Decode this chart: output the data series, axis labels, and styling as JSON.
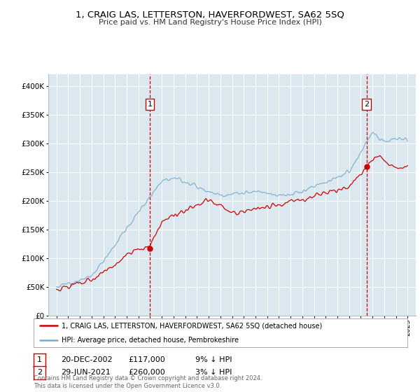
{
  "title": "1, CRAIG LAS, LETTERSTON, HAVERFORDWEST, SA62 5SQ",
  "subtitle": "Price paid vs. HM Land Registry's House Price Index (HPI)",
  "legend_line1": "1, CRAIG LAS, LETTERSTON, HAVERFORDWEST, SA62 5SQ (detached house)",
  "legend_line2": "HPI: Average price, detached house, Pembrokeshire",
  "sale1_date": "20-DEC-2002",
  "sale1_price": "£117,000",
  "sale1_hpi": "9% ↓ HPI",
  "sale1_year": 2002.97,
  "sale1_value": 117000,
  "sale2_date": "29-JUN-2021",
  "sale2_price": "£260,000",
  "sale2_hpi": "3% ↓ HPI",
  "sale2_year": 2021.49,
  "sale2_value": 260000,
  "plot_bg_color": "#dce8f0",
  "red_color": "#cc0000",
  "blue_color": "#7aabcc",
  "grid_color": "#ffffff",
  "footnote": "Contains HM Land Registry data © Crown copyright and database right 2024.\nThis data is licensed under the Open Government Licence v3.0."
}
